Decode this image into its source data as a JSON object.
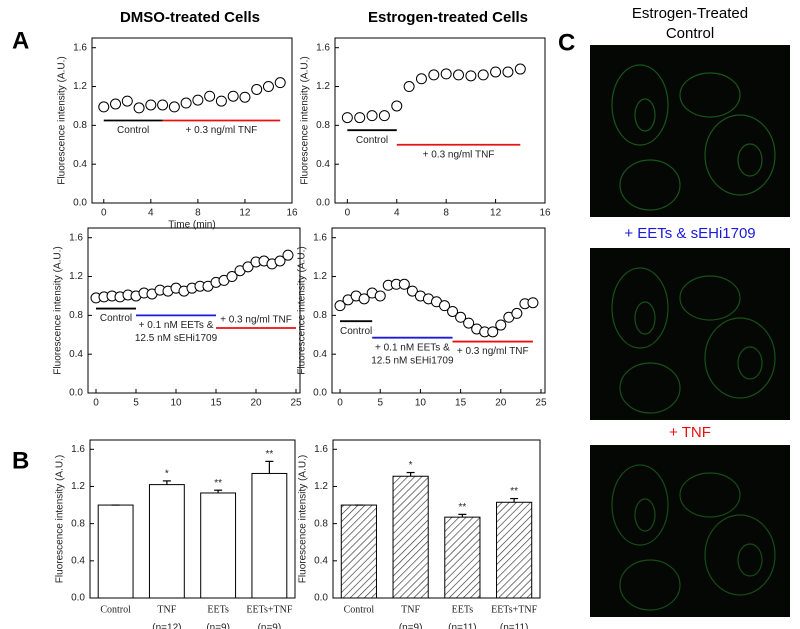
{
  "panel_labels": [
    "A",
    "B",
    "C"
  ],
  "column_titles": [
    "DMSO-treated Cells",
    "Estrogen-treated Cells"
  ],
  "image_panel": {
    "captions": [
      {
        "lines": [
          "Estrogen-Treated",
          "Control"
        ],
        "color": "#000000"
      },
      {
        "lines": [
          "+ EETs & sEHi1709"
        ],
        "color": "#1a1adc"
      },
      {
        "lines": [
          "+ TNF"
        ],
        "color": "#e81010"
      }
    ]
  },
  "chart_data": [
    {
      "type": "scatter",
      "ylabel": "Fluorescence intensity (A.U.)",
      "xlabel": "Time (min)",
      "x": [
        0,
        1,
        2,
        3,
        4,
        5,
        6,
        7,
        8,
        9,
        10,
        11,
        12,
        13,
        14,
        15
      ],
      "values": [
        0.99,
        1.02,
        1.05,
        0.98,
        1.01,
        1.01,
        0.99,
        1.03,
        1.06,
        1.1,
        1.05,
        1.1,
        1.09,
        1.17,
        1.2,
        1.24
      ],
      "xlim": [
        -1,
        16
      ],
      "xticks": [
        0,
        4,
        8,
        12,
        16
      ],
      "ylim": [
        0,
        1.7
      ],
      "yticks": [
        {
          "value": 0,
          "label": "0.0"
        },
        0.4,
        0.8,
        1.2,
        1.6
      ],
      "annotations": [
        {
          "lines": [
            "Control"
          ],
          "color": "#000000",
          "x": [
            0,
            5
          ],
          "y": 0.85,
          "position": "below"
        },
        {
          "lines": [
            "+ 0.3 ng/ml TNF"
          ],
          "color": "#e81010",
          "x": [
            5,
            15
          ],
          "y": 0.85,
          "position": "below"
        }
      ]
    },
    {
      "type": "scatter",
      "ylabel": "Fluorescence intensity (A.U.)",
      "x": [
        0,
        1,
        2,
        3,
        4,
        5,
        6,
        7,
        8,
        9,
        10,
        11,
        12,
        13,
        14
      ],
      "values": [
        0.88,
        0.88,
        0.9,
        0.9,
        1.0,
        1.2,
        1.28,
        1.32,
        1.33,
        1.32,
        1.31,
        1.32,
        1.35,
        1.35,
        1.38
      ],
      "xlim": [
        -1,
        16
      ],
      "xticks": [
        0,
        4,
        8,
        12,
        16
      ],
      "ylim": [
        0,
        1.7
      ],
      "yticks": [
        {
          "value": 0,
          "label": "0.0"
        },
        0.4,
        0.8,
        1.2,
        1.6
      ],
      "annotations": [
        {
          "lines": [
            "Control"
          ],
          "color": "#000000",
          "x": [
            0,
            4
          ],
          "y": 0.75,
          "position": "below"
        },
        {
          "lines": [
            "+ 0.3 ng/ml TNF"
          ],
          "color": "#e81010",
          "x": [
            4,
            14
          ],
          "y": 0.6,
          "position": "below"
        }
      ]
    },
    {
      "type": "scatter",
      "ylabel": "Fluorescence intensity (A.U.)",
      "x": [
        0,
        1,
        2,
        3,
        4,
        5,
        6,
        7,
        8,
        9,
        10,
        11,
        12,
        13,
        14,
        15,
        16,
        17,
        18,
        19,
        20,
        21,
        22,
        23,
        24
      ],
      "values": [
        0.98,
        0.99,
        1.0,
        0.99,
        1.01,
        1.0,
        1.03,
        1.02,
        1.06,
        1.05,
        1.08,
        1.05,
        1.08,
        1.1,
        1.1,
        1.14,
        1.16,
        1.2,
        1.26,
        1.3,
        1.35,
        1.36,
        1.33,
        1.36,
        1.42
      ],
      "xlim": [
        -1,
        25.5
      ],
      "xticks": [
        0,
        5,
        10,
        15,
        20,
        25
      ],
      "ylim": [
        0,
        1.7
      ],
      "yticks": [
        {
          "value": 0,
          "label": "0.0"
        },
        0.4,
        0.8,
        1.2,
        1.6
      ],
      "annotations": [
        {
          "lines": [
            "Control"
          ],
          "color": "#000000",
          "x": [
            0,
            5
          ],
          "y": 0.87,
          "position": "below"
        },
        {
          "lines": [
            "+ 0.1 nM EETs &",
            "12.5 nM sEHi1709"
          ],
          "color": "#1a1adc",
          "x": [
            5,
            15
          ],
          "y": 0.8,
          "position": "below"
        },
        {
          "lines": [
            "+ 0.3 ng/ml TNF"
          ],
          "color": "#e81010",
          "x": [
            15,
            25
          ],
          "y": 0.67,
          "position": "above"
        }
      ]
    },
    {
      "type": "scatter",
      "ylabel": "Fluorescence intensity (A.U.)",
      "x": [
        0,
        1,
        2,
        3,
        4,
        5,
        6,
        7,
        8,
        9,
        10,
        11,
        12,
        13,
        14,
        15,
        16,
        17,
        18,
        19,
        20,
        21,
        22,
        23,
        24
      ],
      "values": [
        0.9,
        0.96,
        1.0,
        0.97,
        1.03,
        1.0,
        1.11,
        1.12,
        1.12,
        1.05,
        1.0,
        0.97,
        0.94,
        0.9,
        0.84,
        0.78,
        0.72,
        0.66,
        0.63,
        0.63,
        0.7,
        0.78,
        0.82,
        0.92,
        0.93
      ],
      "xlim": [
        -1,
        25.5
      ],
      "xticks": [
        0,
        5,
        10,
        15,
        20,
        25
      ],
      "ylim": [
        0,
        1.7
      ],
      "yticks": [
        {
          "value": 0,
          "label": "0.0"
        },
        0.4,
        0.8,
        1.2,
        1.6
      ],
      "annotations": [
        {
          "lines": [
            "Control"
          ],
          "color": "#000000",
          "x": [
            0,
            4
          ],
          "y": 0.74,
          "position": "below"
        },
        {
          "lines": [
            "+ 0.1 nM EETs &",
            "12.5 nM sEHi1709"
          ],
          "color": "#1a1adc",
          "x": [
            4,
            14
          ],
          "y": 0.57,
          "position": "below"
        },
        {
          "lines": [
            "+ 0.3 ng/ml TNF"
          ],
          "color": "#e81010",
          "x": [
            14,
            24
          ],
          "y": 0.53,
          "position": "below"
        }
      ]
    },
    {
      "type": "bar",
      "ylabel": "Fluorescence intensity (A.U.)",
      "fill": "plain",
      "color": "#000000",
      "categories": [
        "Control",
        "TNF",
        "EETs",
        "EETs+TNF"
      ],
      "values": [
        1.0,
        1.22,
        1.13,
        1.34
      ],
      "errors": [
        0,
        0.04,
        0.03,
        0.13
      ],
      "significance": [
        null,
        "*",
        "**",
        "**"
      ],
      "n_labels": [
        null,
        "(n=12)",
        "(n=9)",
        "(n=9)"
      ],
      "ylim": [
        0,
        1.7
      ],
      "yticks": [
        {
          "value": 0,
          "label": "0.0"
        },
        0.4,
        0.8,
        1.2,
        1.6
      ]
    },
    {
      "type": "bar",
      "ylabel": "Fluorescence intensity (A.U.)",
      "fill": "hatch",
      "color": "#000000",
      "categories": [
        "Control",
        "TNF",
        "EETs",
        "EETs+TNF"
      ],
      "values": [
        1.0,
        1.31,
        0.87,
        1.03
      ],
      "errors": [
        0,
        0.04,
        0.03,
        0.04
      ],
      "significance": [
        null,
        "*",
        "**",
        "**"
      ],
      "n_labels": [
        null,
        "(n=9)",
        "(n=11)",
        "(n=11)"
      ],
      "ylim": [
        0,
        1.7
      ],
      "yticks": [
        {
          "value": 0,
          "label": "0.0"
        },
        0.4,
        0.8,
        1.2,
        1.6
      ]
    }
  ]
}
